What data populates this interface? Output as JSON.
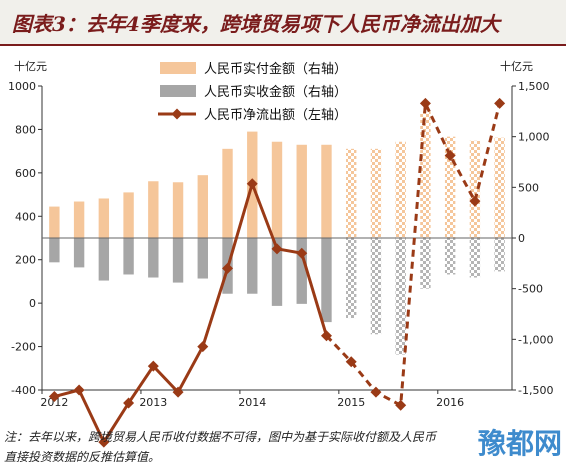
{
  "title": "图表3：去年4季度来，跨境贸易项下人民币净流出加大",
  "note": "注：去年以来，跨境贸易人民币收付数据不可得，图中为基于实际收付额及人民币直接投资数据的反推估算值。",
  "watermark": "豫都网",
  "chart_data": {
    "type": "bar+line",
    "left_axis": {
      "unit": "十亿元",
      "ylim": [
        -400,
        1000
      ],
      "ticks": [
        -400,
        -200,
        0,
        200,
        400,
        600,
        800,
        1000
      ]
    },
    "right_axis": {
      "unit": "十亿元",
      "ylim": [
        -1500,
        1500
      ],
      "ticks": [
        -1500,
        -1000,
        -500,
        0,
        500,
        1000,
        1500
      ],
      "tick_labels": [
        "-1,500",
        "-1,000",
        "-500",
        "0",
        "500",
        "1,000",
        "1,500"
      ]
    },
    "x_tick_labels": [
      "2012",
      "2013",
      "2014",
      "2015",
      "2016"
    ],
    "x_tick_positions": [
      0,
      4,
      8,
      12,
      16
    ],
    "legend": [
      {
        "label": "人民币实付金额（右轴）",
        "color": "#f5c69a"
      },
      {
        "label": "人民币实收金额（右轴）",
        "color": "#a6a6a6"
      },
      {
        "label": "人民币净流出额（左轴）",
        "color": "#9a3a16"
      }
    ],
    "series": [
      {
        "name": "人民币实付金额（右轴）",
        "axis": "right",
        "values": [
          310,
          360,
          390,
          450,
          560,
          550,
          620,
          880,
          1050,
          950,
          920,
          920,
          880,
          880,
          950,
          1250,
          1000,
          960,
          990
        ]
      },
      {
        "name": "人民币实收金额（右轴）",
        "axis": "right",
        "values": [
          -240,
          -290,
          -420,
          -360,
          -390,
          -440,
          -400,
          -550,
          -550,
          -670,
          -650,
          -830,
          -790,
          -950,
          -1150,
          -500,
          -360,
          -390,
          -330
        ]
      },
      {
        "name": "人民币净流出额（左轴）",
        "axis": "left",
        "values": [
          -430,
          -400,
          -640,
          -460,
          -290,
          -410,
          -200,
          160,
          550,
          250,
          230,
          -150,
          -270,
          -410,
          -470,
          920,
          680,
          470,
          920
        ]
      }
    ],
    "line_solid_until_index": 11
  }
}
